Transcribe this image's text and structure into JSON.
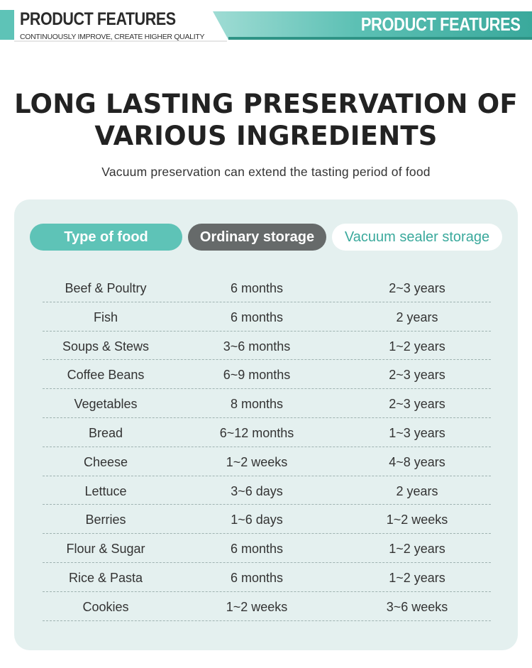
{
  "header": {
    "left_title": "PRODUCT FEATURES",
    "left_subtitle": "CONTINUOUSLY IMPROVE, CREATE HIGHER QUALITY",
    "right_title": "PRODUCT FEATURES"
  },
  "title": {
    "line1": "LONG LASTING PRESERVATION OF",
    "line2": "VARIOUS INGREDIENTS",
    "subtitle": "Vacuum preservation can extend the tasting period of food"
  },
  "table": {
    "headers": {
      "food": "Type of food",
      "ordinary": "Ordinary storage",
      "vacuum": "Vacuum sealer storage"
    },
    "rows": [
      {
        "food": "Beef & Poultry",
        "ordinary": "6 months",
        "vacuum": "2~3 years"
      },
      {
        "food": "Fish",
        "ordinary": "6 months",
        "vacuum": "2 years"
      },
      {
        "food": "Soups & Stews",
        "ordinary": "3~6 months",
        "vacuum": "1~2 years"
      },
      {
        "food": "Coffee Beans",
        "ordinary": "6~9 months",
        "vacuum": "2~3 years"
      },
      {
        "food": "Vegetables",
        "ordinary": "8 months",
        "vacuum": "2~3 years"
      },
      {
        "food": "Bread",
        "ordinary": "6~12 months",
        "vacuum": "1~3 years"
      },
      {
        "food": "Cheese",
        "ordinary": "1~2 weeks",
        "vacuum": "4~8 years"
      },
      {
        "food": "Lettuce",
        "ordinary": "3~6 days",
        "vacuum": "2 years"
      },
      {
        "food": "Berries",
        "ordinary": "1~6 days",
        "vacuum": "1~2 weeks"
      },
      {
        "food": "Flour & Sugar",
        "ordinary": "6 months",
        "vacuum": "1~2 years"
      },
      {
        "food": "Rice & Pasta",
        "ordinary": "6 months",
        "vacuum": "1~2 years"
      },
      {
        "food": "Cookies",
        "ordinary": "1~2 weeks",
        "vacuum": "3~6 weeks"
      }
    ]
  },
  "colors": {
    "accent": "#5ec3b7",
    "accent_dark": "#3aa99c",
    "panel_bg": "#e4f0ef",
    "ordinary_pill": "#666a6a"
  }
}
